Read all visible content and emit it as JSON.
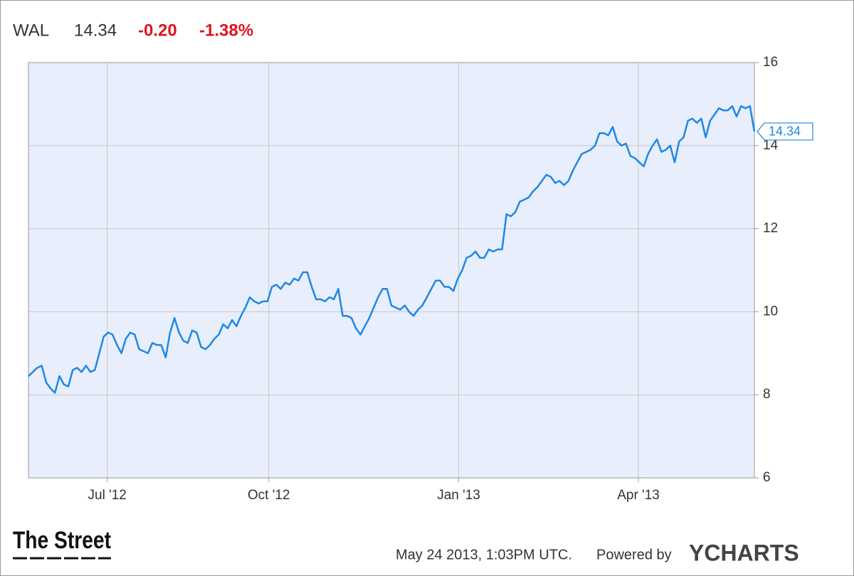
{
  "header": {
    "ticker": "WAL",
    "price": "14.34",
    "change": "-0.20",
    "change_pct": "-1.38%"
  },
  "footer": {
    "brand": "The Street",
    "timestamp": "May 24 2013, 1:03PM UTC.",
    "powered": "Powered by",
    "provider": "YCHARTS"
  },
  "chart_data": {
    "type": "line",
    "series": [
      {
        "name": "WAL",
        "color": "#1e88e5",
        "values": [
          8.45,
          8.55,
          8.65,
          8.7,
          8.3,
          8.15,
          8.05,
          8.45,
          8.25,
          8.2,
          8.6,
          8.65,
          8.55,
          8.7,
          8.55,
          8.6,
          9.0,
          9.4,
          9.5,
          9.45,
          9.2,
          9.0,
          9.35,
          9.5,
          9.45,
          9.1,
          9.05,
          9.0,
          9.25,
          9.2,
          9.2,
          8.9,
          9.5,
          9.85,
          9.5,
          9.3,
          9.25,
          9.55,
          9.5,
          9.15,
          9.1,
          9.2,
          9.35,
          9.45,
          9.7,
          9.6,
          9.8,
          9.65,
          9.9,
          10.1,
          10.35,
          10.25,
          10.2,
          10.25,
          10.25,
          10.6,
          10.65,
          10.55,
          10.7,
          10.65,
          10.8,
          10.75,
          10.95,
          10.95,
          10.6,
          10.3,
          10.3,
          10.25,
          10.35,
          10.3,
          10.55,
          9.9,
          9.9,
          9.85,
          9.6,
          9.45,
          9.65,
          9.85,
          10.1,
          10.35,
          10.55,
          10.55,
          10.15,
          10.1,
          10.05,
          10.15,
          10.0,
          9.9,
          10.05,
          10.15,
          10.35,
          10.55,
          10.75,
          10.75,
          10.6,
          10.6,
          10.5,
          10.8,
          11.0,
          11.3,
          11.35,
          11.45,
          11.3,
          11.3,
          11.5,
          11.45,
          11.5,
          11.5,
          12.35,
          12.3,
          12.4,
          12.65,
          12.7,
          12.75,
          12.9,
          13.0,
          13.15,
          13.3,
          13.25,
          13.1,
          13.15,
          13.05,
          13.15,
          13.4,
          13.6,
          13.8,
          13.85,
          13.9,
          14.0,
          14.3,
          14.3,
          14.25,
          14.45,
          14.1,
          14.0,
          14.05,
          13.75,
          13.7,
          13.6,
          13.5,
          13.8,
          14.0,
          14.15,
          13.85,
          13.9,
          14.0,
          13.6,
          14.1,
          14.2,
          14.6,
          14.65,
          14.55,
          14.65,
          14.2,
          14.6,
          14.75,
          14.9,
          14.85,
          14.85,
          14.95,
          14.7,
          14.95,
          14.9,
          14.95,
          14.34
        ]
      }
    ],
    "xlim": [
      0,
      164
    ],
    "xticks": [
      {
        "value": 17.8,
        "label": "Jul '12"
      },
      {
        "value": 54.3,
        "label": "Oct '12"
      },
      {
        "value": 97.2,
        "label": "Jan '13"
      },
      {
        "value": 137.8,
        "label": "Apr '13"
      }
    ],
    "ylim": [
      6,
      16
    ],
    "yticks": [
      6,
      8,
      10,
      12,
      14,
      16
    ],
    "grid": true,
    "background": "#e8eefb"
  }
}
